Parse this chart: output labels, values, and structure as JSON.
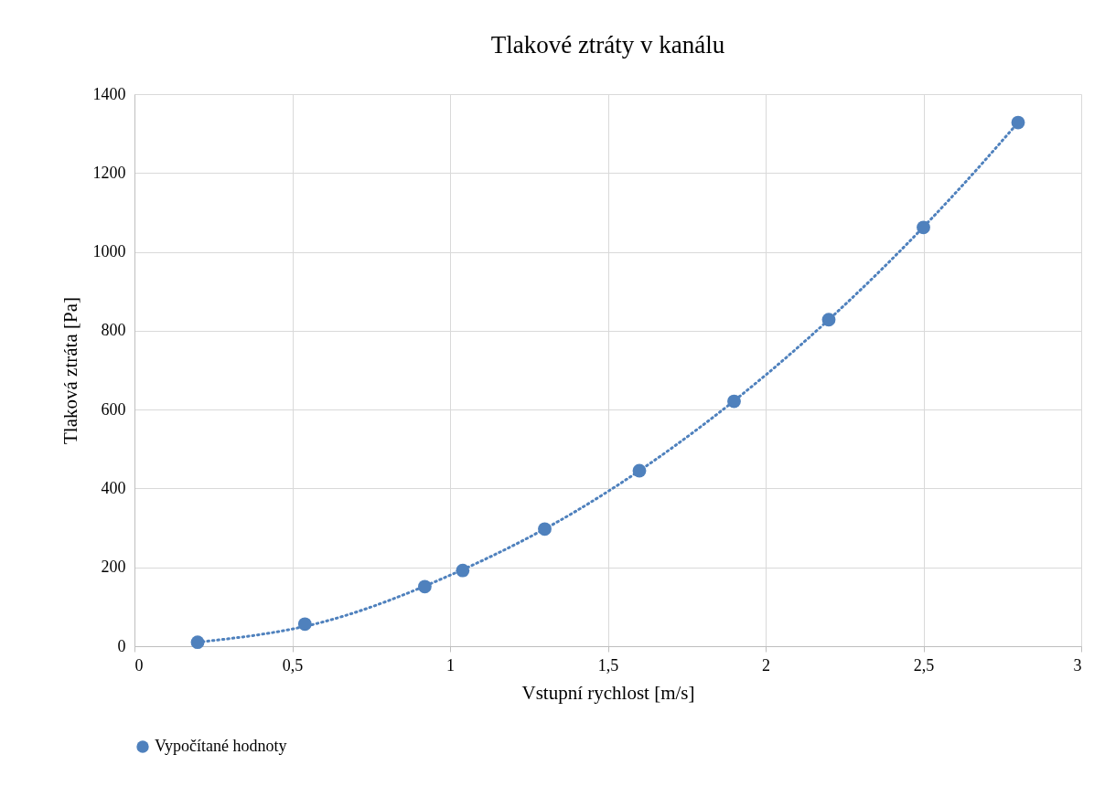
{
  "chart_data": {
    "type": "scatter",
    "title": "Tlakové ztráty v kanálu",
    "xlabel": "Vstupní rychlost [m/s]",
    "ylabel": "Tlaková ztráta [Pa]",
    "xlim": [
      0,
      3
    ],
    "xticks": [
      0,
      {
        "value": 0.5,
        "label": "0,5"
      },
      1,
      {
        "value": 1.5,
        "label": "1,5"
      },
      2,
      {
        "value": 2.5,
        "label": "2,5"
      },
      3
    ],
    "ylim": [
      0,
      1400
    ],
    "yticks": [
      0,
      200,
      400,
      600,
      800,
      1000,
      1200,
      1400
    ],
    "grid": true,
    "legend": "bottom",
    "marker": "circle",
    "series": [
      {
        "name": "Vypočítané hodnoty",
        "color": "#4f81bd",
        "x": [
          0.2,
          0.54,
          0.92,
          1.04,
          1.3,
          1.6,
          1.9,
          2.2,
          2.5,
          2.8
        ],
        "values": [
          10,
          56,
          151,
          192,
          297,
          445,
          621,
          828,
          1062,
          1328
        ]
      },
      {
        "type": "line",
        "marker": "none",
        "line_style": "dotted",
        "color": "#4f81bd",
        "x": [
          0.2,
          0.6,
          1.0,
          1.4,
          1.8,
          2.2,
          2.6,
          2.8
        ],
        "values": [
          10,
          62,
          180,
          343,
          560,
          828,
          1148,
          1328
        ]
      }
    ]
  }
}
